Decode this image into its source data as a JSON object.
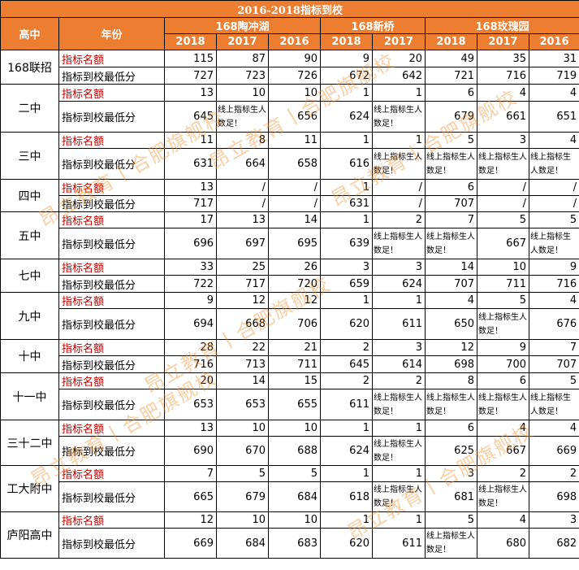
{
  "title": "2016-2018指标到校",
  "header": {
    "school_col": "高中",
    "year_col": "年份",
    "groups": [
      "168陶冲湖",
      "168新桥",
      "168玫瑰园"
    ],
    "years": [
      "2018",
      "2017",
      "2016",
      "2018",
      "2017",
      "2018",
      "2017",
      "2016"
    ]
  },
  "row_labels": {
    "quota": "指标名额",
    "min_score": "指标到校最低分"
  },
  "schools": [
    {
      "name": "168联招",
      "quota": [
        "115",
        "87",
        "90",
        "9",
        "20",
        "49",
        "35",
        "31"
      ],
      "min": [
        "727",
        "723",
        "726",
        "672",
        "642",
        "721",
        "716",
        "719"
      ]
    },
    {
      "name": "二中",
      "quota": [
        "13",
        "10",
        "10",
        "1",
        "1",
        "6",
        "4",
        "4"
      ],
      "min": [
        "645",
        "线上指标生人数足！",
        "656",
        "624",
        "线上指标生人数足！",
        "679",
        "661",
        "651"
      ]
    },
    {
      "name": "三中",
      "quota": [
        "11",
        "8",
        "11",
        "1",
        "1",
        "5",
        "3",
        "4"
      ],
      "min": [
        "631",
        "664",
        "658",
        "616",
        "线上指标生人数足！",
        "线上指标生人数足！",
        "线上指标生人数足！",
        "线上指标生人数足！"
      ]
    },
    {
      "name": "四中",
      "quota": [
        "13",
        "/",
        "/",
        "1",
        "/",
        "6",
        "/",
        "/"
      ],
      "min": [
        "717",
        "/",
        "/",
        "631",
        "/",
        "707",
        "/",
        "/"
      ]
    },
    {
      "name": "五中",
      "quota": [
        "17",
        "13",
        "14",
        "1",
        "2",
        "7",
        "5",
        "5"
      ],
      "min": [
        "696",
        "697",
        "695",
        "639",
        "线上指标生人数足！",
        "线上指标生人数足！",
        "667",
        "线上指标生人数足！"
      ]
    },
    {
      "name": "七中",
      "quota": [
        "33",
        "25",
        "26",
        "3",
        "3",
        "14",
        "10",
        "9"
      ],
      "min": [
        "722",
        "717",
        "720",
        "659",
        "624",
        "707",
        "711",
        "716"
      ]
    },
    {
      "name": "九中",
      "quota": [
        "9",
        "12",
        "12",
        "1",
        "1",
        "4",
        "5",
        "4"
      ],
      "min": [
        "694",
        "668",
        "706",
        "620",
        "611",
        "650",
        "线上指标生人数足！",
        "676"
      ]
    },
    {
      "name": "十中",
      "quota": [
        "28",
        "22",
        "21",
        "2",
        "3",
        "12",
        "9",
        "7"
      ],
      "min": [
        "716",
        "713",
        "711",
        "645",
        "614",
        "698",
        "700",
        "707"
      ]
    },
    {
      "name": "十一中",
      "quota": [
        "20",
        "14",
        "15",
        "2",
        "2",
        "8",
        "6",
        "5"
      ],
      "min": [
        "653",
        "653",
        "655",
        "611",
        "线上指标生人数足！",
        "线上指标生人数足！",
        "线上指标生人数足！",
        "线上指标生人数足！"
      ]
    },
    {
      "name": "三十二中",
      "quota": [
        "13",
        "10",
        "10",
        "1",
        "1",
        "6",
        "4",
        "4"
      ],
      "min": [
        "690",
        "670",
        "688",
        "624",
        "线上指标生人数足！",
        "625",
        "667",
        "669"
      ]
    },
    {
      "name": "工大附中",
      "quota": [
        "7",
        "5",
        "5",
        "1",
        "1",
        "3",
        "2",
        "2"
      ],
      "min": [
        "665",
        "679",
        "684",
        "618",
        "线上指标生人数足！",
        "681",
        "线上指标生人数足！",
        "698"
      ]
    },
    {
      "name": "庐阳高中",
      "quota": [
        "12",
        "10",
        "10",
        "1",
        "1",
        "5",
        "4",
        "3"
      ],
      "min": [
        "669",
        "684",
        "683",
        "620",
        "611",
        "线上指标生人数足！",
        "680",
        "682"
      ]
    }
  ],
  "watermarks": [
    "昂立教育丨合肥旗舰校",
    "昂立教育丨合肥旗舰校",
    "昂立教育丨合肥旗舰校",
    "昂立教育丨合肥旗舰校",
    "昂立教育丨合肥旗舰校",
    "昂立教育丨合肥旗舰校"
  ],
  "colors": {
    "header_bg": "#ED7D31",
    "header_text": "#FFFFFF",
    "quota_label": "#C00000",
    "border": "#000000",
    "watermark": "#F08C28"
  }
}
